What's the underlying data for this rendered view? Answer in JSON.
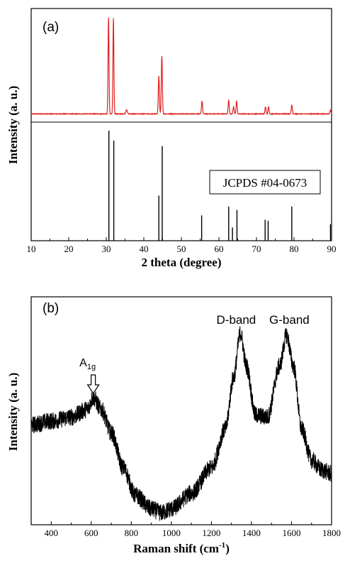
{
  "chart_data": [
    {
      "type": "line",
      "panel_label": "(a)",
      "xlabel": "2 theta (degree)",
      "ylabel": "Intensity (a. u.)",
      "xlim": [
        10,
        90
      ],
      "x_ticks": [
        10,
        20,
        30,
        40,
        50,
        60,
        70,
        80,
        90
      ],
      "x_tick_labels": [
        "10",
        "20",
        "30",
        "40",
        "50",
        "60",
        "70",
        "80",
        "90"
      ],
      "reference_label": "JCPDS #04-0673",
      "colors": {
        "measured": "#e02020",
        "reference": "#000000"
      },
      "series": [
        {
          "role": "measured",
          "baseline": 0.04,
          "peaks": [
            {
              "x": 30.6,
              "y": 0.97,
              "w": 0.18
            },
            {
              "x": 31.9,
              "y": 0.96,
              "w": 0.18
            },
            {
              "x": 35.4,
              "y": 0.04,
              "w": 0.3
            },
            {
              "x": 44.0,
              "y": 0.38,
              "w": 0.2
            },
            {
              "x": 44.8,
              "y": 0.58,
              "w": 0.2
            },
            {
              "x": 55.5,
              "y": 0.13,
              "w": 0.2
            },
            {
              "x": 62.6,
              "y": 0.14,
              "w": 0.2
            },
            {
              "x": 63.9,
              "y": 0.07,
              "w": 0.2
            },
            {
              "x": 64.7,
              "y": 0.13,
              "w": 0.2
            },
            {
              "x": 72.4,
              "y": 0.07,
              "w": 0.2
            },
            {
              "x": 73.2,
              "y": 0.07,
              "w": 0.2
            },
            {
              "x": 79.4,
              "y": 0.09,
              "w": 0.2
            },
            {
              "x": 89.7,
              "y": 0.04,
              "w": 0.2
            }
          ]
        },
        {
          "role": "reference",
          "type": "stick",
          "lines": [
            {
              "x": 30.7,
              "y": 1.0
            },
            {
              "x": 32.0,
              "y": 0.91
            },
            {
              "x": 44.0,
              "y": 0.41
            },
            {
              "x": 44.9,
              "y": 0.86
            },
            {
              "x": 55.4,
              "y": 0.23
            },
            {
              "x": 62.6,
              "y": 0.31
            },
            {
              "x": 63.6,
              "y": 0.12
            },
            {
              "x": 64.8,
              "y": 0.28
            },
            {
              "x": 72.3,
              "y": 0.19
            },
            {
              "x": 73.1,
              "y": 0.18
            },
            {
              "x": 79.4,
              "y": 0.31
            },
            {
              "x": 89.7,
              "y": 0.15
            }
          ]
        }
      ]
    },
    {
      "type": "line",
      "panel_label": "(b)",
      "xlabel": "Raman shift (cm",
      "xlabel_sup": "-1",
      "xlabel_close": ")",
      "ylabel": "Intensity (a. u.)",
      "xlim": [
        300,
        1800
      ],
      "x_ticks": [
        400,
        600,
        800,
        1000,
        1200,
        1400,
        1600,
        1800
      ],
      "x_tick_labels": [
        "400",
        "600",
        "800",
        "1000",
        "1200",
        "1400",
        "1600",
        "1800"
      ],
      "annotations": [
        {
          "text": "A",
          "sub": "1g",
          "x": 610
        },
        {
          "text": "D-band",
          "x": 1345
        },
        {
          "text": "G-band",
          "x": 1575
        }
      ],
      "color": "#000000",
      "series": [
        {
          "profile": [
            [
              300,
              0.5
            ],
            [
              400,
              0.52
            ],
            [
              500,
              0.54
            ],
            [
              580,
              0.58
            ],
            [
              610,
              0.64
            ],
            [
              650,
              0.58
            ],
            [
              700,
              0.46
            ],
            [
              760,
              0.28
            ],
            [
              820,
              0.14
            ],
            [
              900,
              0.07
            ],
            [
              950,
              0.05
            ],
            [
              1000,
              0.07
            ],
            [
              1100,
              0.15
            ],
            [
              1200,
              0.28
            ],
            [
              1270,
              0.48
            ],
            [
              1310,
              0.74
            ],
            [
              1345,
              0.97
            ],
            [
              1375,
              0.8
            ],
            [
              1420,
              0.55
            ],
            [
              1480,
              0.54
            ],
            [
              1540,
              0.8
            ],
            [
              1575,
              0.96
            ],
            [
              1610,
              0.8
            ],
            [
              1650,
              0.48
            ],
            [
              1700,
              0.32
            ],
            [
              1750,
              0.27
            ],
            [
              1800,
              0.25
            ]
          ],
          "noise": 0.045
        }
      ]
    }
  ]
}
